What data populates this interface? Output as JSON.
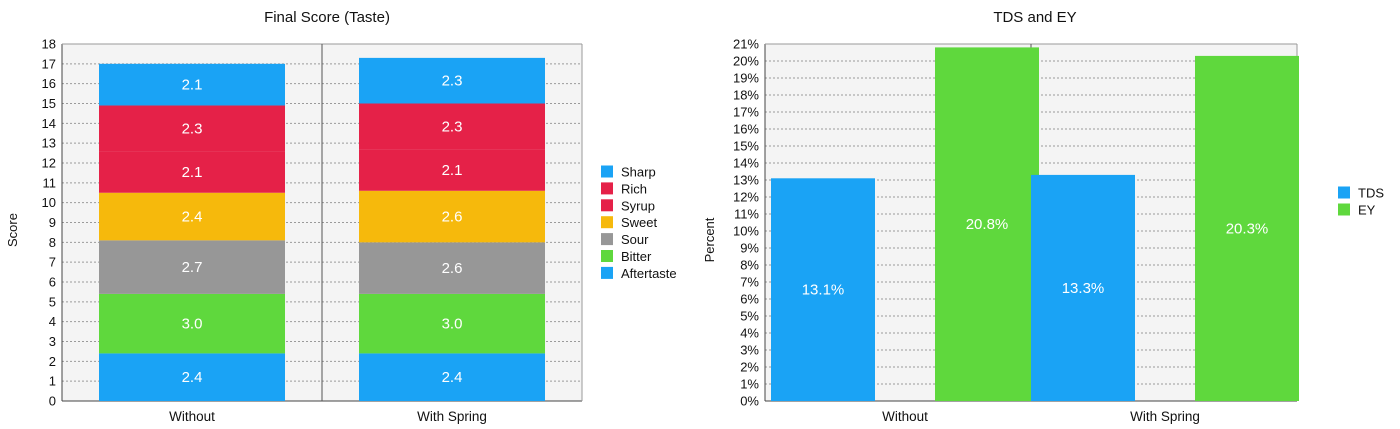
{
  "chart_data": [
    {
      "type": "bar",
      "stacked": true,
      "title": "Final Score (Taste)",
      "xlabel": "",
      "ylabel": "Score",
      "ylim": [
        0,
        18
      ],
      "yticks": [
        "0",
        "1",
        "2",
        "3",
        "4",
        "5",
        "6",
        "7",
        "8",
        "9",
        "10",
        "11",
        "12",
        "13",
        "14",
        "15",
        "16",
        "17",
        "18"
      ],
      "categories": [
        "Without",
        "With Spring"
      ],
      "grid": true,
      "legend": "right",
      "series": [
        {
          "name": "Aftertaste",
          "color": "#1aa3f5",
          "values": [
            2.4,
            2.4
          ],
          "labels": [
            "2.4",
            "2.4"
          ]
        },
        {
          "name": "Bitter",
          "color": "#5fd83d",
          "values": [
            3.0,
            3.0
          ],
          "labels": [
            "3.0",
            "3.0"
          ]
        },
        {
          "name": "Sour",
          "color": "#979797",
          "values": [
            2.7,
            2.6
          ],
          "labels": [
            "2.7",
            "2.6"
          ]
        },
        {
          "name": "Sweet",
          "color": "#f6b90c",
          "values": [
            2.4,
            2.6
          ],
          "labels": [
            "2.4",
            "2.6"
          ]
        },
        {
          "name": "Syrup",
          "color": "#e52148",
          "values": [
            2.1,
            2.1
          ],
          "labels": [
            "2.1",
            "2.1"
          ]
        },
        {
          "name": "Rich",
          "color": "#e52148",
          "values": [
            2.3,
            2.3
          ],
          "labels": [
            "2.3",
            "2.3"
          ]
        },
        {
          "name": "Sharp",
          "color": "#1aa3f5",
          "values": [
            2.1,
            2.3
          ],
          "labels": [
            "2.1",
            "2.3"
          ]
        }
      ],
      "legend_order": [
        "Sharp",
        "Rich",
        "Syrup",
        "Sweet",
        "Sour",
        "Bitter",
        "Aftertaste"
      ]
    },
    {
      "type": "bar",
      "stacked": false,
      "title": "TDS and EY",
      "xlabel": "",
      "ylabel": "Percent",
      "ylim": [
        0,
        21
      ],
      "yticks": [
        "0%",
        "1%",
        "2%",
        "3%",
        "4%",
        "5%",
        "6%",
        "7%",
        "8%",
        "9%",
        "10%",
        "11%",
        "12%",
        "13%",
        "14%",
        "15%",
        "16%",
        "17%",
        "18%",
        "19%",
        "20%",
        "21%"
      ],
      "categories": [
        "Without",
        "With Spring"
      ],
      "grid": true,
      "legend": "right",
      "series": [
        {
          "name": "TDS",
          "color": "#1aa3f5",
          "values": [
            13.1,
            13.3
          ],
          "labels": [
            "13.1%",
            "13.3%"
          ]
        },
        {
          "name": "EY",
          "color": "#5fd83d",
          "values": [
            20.8,
            20.3
          ],
          "labels": [
            "20.8%",
            "20.3%"
          ]
        }
      ],
      "legend_order": [
        "TDS",
        "EY"
      ]
    }
  ]
}
